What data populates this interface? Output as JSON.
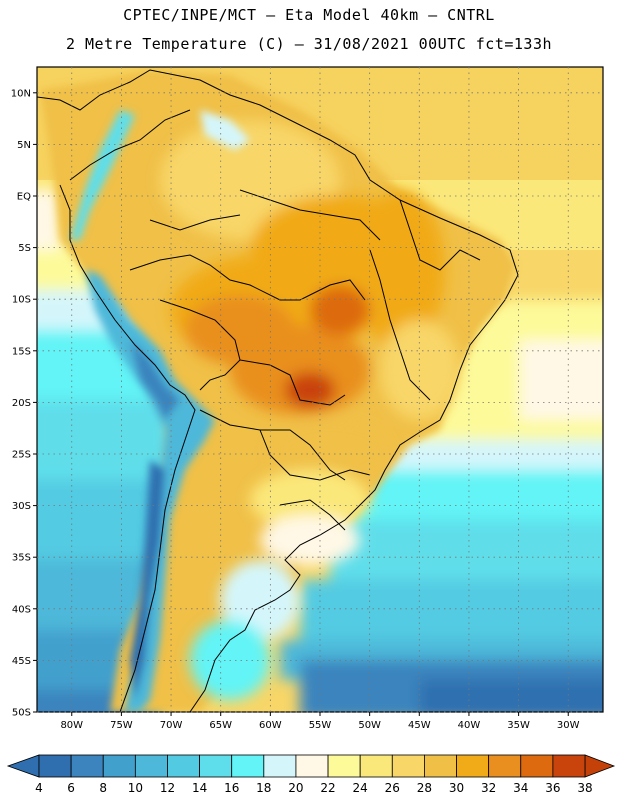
{
  "header": {
    "line1": "CPTEC/INPE/MCT –  Eta Model 40km – CNTRL",
    "line2": "2 Metre Temperature (C) – 31/08/2021 00UTC fct=133h"
  },
  "map": {
    "lat_labels": [
      "10N",
      "5N",
      "EQ",
      "5S",
      "10S",
      "15S",
      "20S",
      "25S",
      "30S",
      "35S",
      "40S",
      "45S",
      "50S"
    ],
    "lat_values": [
      10,
      5,
      0,
      -5,
      -10,
      -15,
      -20,
      -25,
      -30,
      -35,
      -40,
      -45,
      -50
    ],
    "lon_labels": [
      "80W",
      "75W",
      "70W",
      "65W",
      "60W",
      "55W",
      "50W",
      "45W",
      "40W",
      "35W",
      "30W"
    ],
    "lon_values": [
      -80,
      -75,
      -70,
      -65,
      -60,
      -55,
      -50,
      -45,
      -40,
      -35,
      -30
    ],
    "lat_range": [
      -50,
      12.5
    ],
    "lon_range": [
      -83.5,
      -26.5
    ]
  },
  "legend": {
    "ticks": [
      "4",
      "6",
      "8",
      "10",
      "12",
      "14",
      "16",
      "18",
      "20",
      "22",
      "24",
      "26",
      "28",
      "30",
      "32",
      "34",
      "36",
      "38"
    ],
    "colors": [
      "#2f6fb0",
      "#3b84be",
      "#42a0cd",
      "#4db8d9",
      "#52cbe2",
      "#5edeea",
      "#62f4f6",
      "#d4f6fb",
      "#fff8e6",
      "#fdfa9a",
      "#fbe87a",
      "#f8d667",
      "#f0c046",
      "#f1aa18",
      "#e98f1f",
      "#dd6a0e",
      "#c9430d"
    ],
    "low_color": "#2f6fb0",
    "high_color": "#c44109"
  }
}
